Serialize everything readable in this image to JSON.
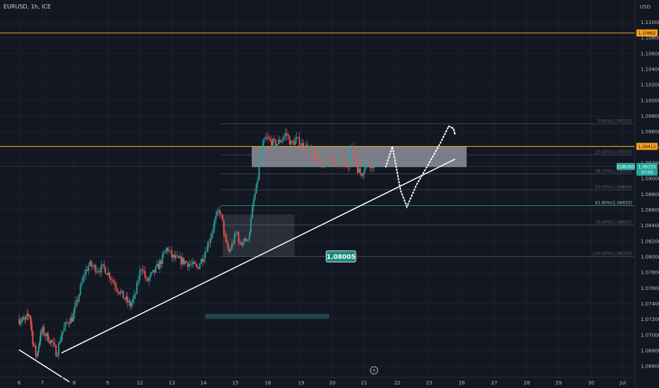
{
  "header": {
    "title": "EURUSD, 1h, ICE",
    "currency": "USD"
  },
  "colors": {
    "background": "#131722",
    "grid": "#1e222d",
    "up": "#26a69a",
    "down": "#ef5350",
    "level_orange": "#f7a21b",
    "trendline": "#ffffff",
    "fib_line": "#787b86",
    "fib_green": "#26a69a",
    "zone": "#d1d4dc",
    "last_price": "#26a69a"
  },
  "icons": [
    "lightning-icon"
  ],
  "chart_data": {
    "type": "candlestick",
    "symbol": "EURUSD",
    "timeframe": "1h",
    "exchange": "ICE",
    "ylim": [
      1.065,
      1.113
    ],
    "y_ticks": [
      "1.11000",
      "1.10800",
      "1.10600",
      "1.10400",
      "1.10200",
      "1.10000",
      "1.09800",
      "1.09600",
      "1.09400",
      "1.09200",
      "1.09000",
      "1.08800",
      "1.08600",
      "1.08400",
      "1.08200",
      "1.08000",
      "1.07800",
      "1.07600",
      "1.07400",
      "1.07200",
      "1.07000",
      "1.06800",
      "1.06600"
    ],
    "x_ticks": [
      {
        "label": "6",
        "t": 0
      },
      {
        "label": "7",
        "t": 1
      },
      {
        "label": "8",
        "t": 2
      },
      {
        "label": "9",
        "t": 3
      },
      {
        "label": "12",
        "t": 4
      },
      {
        "label": "13",
        "t": 5
      },
      {
        "label": "14",
        "t": 6
      },
      {
        "label": "15",
        "t": 7
      },
      {
        "label": "16",
        "t": 8
      },
      {
        "label": "19",
        "t": 9
      },
      {
        "label": "20",
        "t": 10
      },
      {
        "label": "21",
        "t": 11
      },
      {
        "label": "22",
        "t": 12
      },
      {
        "label": "23",
        "t": 13
      },
      {
        "label": "26",
        "t": 14
      },
      {
        "label": "27",
        "t": 15
      },
      {
        "label": "28",
        "t": 16
      },
      {
        "label": "29",
        "t": 17
      },
      {
        "label": "30",
        "t": 18
      },
      {
        "label": "Jul",
        "t": 19
      }
    ],
    "price_path": [
      [
        0.0,
        1.072
      ],
      [
        0.25,
        1.0718
      ],
      [
        0.45,
        1.0728
      ],
      [
        0.6,
        1.069
      ],
      [
        0.75,
        1.0672
      ],
      [
        0.9,
        1.0698
      ],
      [
        1.0,
        1.0706
      ],
      [
        1.1,
        1.07
      ],
      [
        1.3,
        1.069
      ],
      [
        1.45,
        1.0676
      ],
      [
        1.6,
        1.0702
      ],
      [
        1.8,
        1.0718
      ],
      [
        1.95,
        1.0722
      ],
      [
        2.1,
        1.0746
      ],
      [
        2.3,
        1.0778
      ],
      [
        2.45,
        1.079
      ],
      [
        2.7,
        1.0784
      ],
      [
        2.9,
        1.0786
      ],
      [
        3.1,
        1.0774
      ],
      [
        3.3,
        1.076
      ],
      [
        3.5,
        1.0748
      ],
      [
        3.7,
        1.0738
      ],
      [
        3.85,
        1.075
      ],
      [
        3.95,
        1.0772
      ],
      [
        4.05,
        1.079
      ],
      [
        4.2,
        1.0768
      ],
      [
        4.4,
        1.0778
      ],
      [
        4.6,
        1.079
      ],
      [
        4.75,
        1.0802
      ],
      [
        4.85,
        1.0812
      ],
      [
        5.0,
        1.08
      ],
      [
        5.2,
        1.0796
      ],
      [
        5.4,
        1.0794
      ],
      [
        5.6,
        1.079
      ],
      [
        5.8,
        1.0786
      ],
      [
        6.0,
        1.0802
      ],
      [
        6.2,
        1.0824
      ],
      [
        6.35,
        1.0846
      ],
      [
        6.5,
        1.086
      ],
      [
        6.6,
        1.0842
      ],
      [
        6.7,
        1.0816
      ],
      [
        6.8,
        1.0806
      ],
      [
        6.95,
        1.0822
      ],
      [
        7.05,
        1.0832
      ],
      [
        7.15,
        1.0812
      ],
      [
        7.25,
        1.0826
      ],
      [
        7.35,
        1.0818
      ],
      [
        7.45,
        1.0838
      ],
      [
        7.55,
        1.087
      ],
      [
        7.65,
        1.089
      ],
      [
        7.75,
        1.092
      ],
      [
        7.85,
        1.0944
      ],
      [
        7.95,
        1.0952
      ],
      [
        8.1,
        1.0946
      ],
      [
        8.25,
        1.0944
      ],
      [
        8.4,
        1.095
      ],
      [
        8.55,
        1.0958
      ],
      [
        8.7,
        1.0944
      ],
      [
        8.85,
        1.095
      ],
      [
        9.0,
        1.0944
      ],
      [
        9.15,
        1.094
      ],
      [
        9.3,
        1.0936
      ],
      [
        9.45,
        1.0926
      ],
      [
        9.6,
        1.0922
      ],
      [
        9.75,
        1.0924
      ],
      [
        9.9,
        1.0926
      ],
      [
        10.05,
        1.092
      ],
      [
        10.2,
        1.0924
      ],
      [
        10.35,
        1.0918
      ],
      [
        10.5,
        1.092
      ],
      [
        10.6,
        1.094
      ],
      [
        10.7,
        1.093
      ],
      [
        10.8,
        1.0912
      ],
      [
        10.9,
        1.0906
      ],
      [
        11.0,
        1.0915
      ],
      [
        11.2,
        1.092
      ],
      [
        11.35,
        1.0915
      ]
    ],
    "price_path_time_base": "x_ticks.t index units (trading sessions)",
    "fib_retracement": {
      "levels": [
        {
          "ratio_label": "0.00%",
          "price": 1.09702,
          "label": "0.00%(1.09702)"
        },
        {
          "ratio_label": "23.60%",
          "price": 1.09305,
          "label": "23.60%(1.09305)"
        },
        {
          "ratio_label": "38.20%",
          "price": 1.09059,
          "label": "38.20%(1.09059)"
        },
        {
          "ratio_label": "50.00%",
          "price": 1.08856,
          "label": "50.00%(1.08856)"
        },
        {
          "ratio_label": "61.80%",
          "price": 1.08655,
          "label": "61.80%(1.08655)"
        },
        {
          "ratio_label": "78.60%",
          "price": 1.08407,
          "label": "78.60%(1.08407)"
        },
        {
          "ratio_label": "100.00%",
          "price": 1.08005,
          "label": "100.00%(1.08005)"
        }
      ],
      "highlighted_ratio": "61.80%"
    },
    "horizontal_levels": [
      {
        "price": 1.10862,
        "label": "1.10862"
      },
      {
        "price": 1.09412,
        "label": "1.09412"
      }
    ],
    "last_price": {
      "symbol": "EURUSD",
      "price": "1.09155",
      "countdown": "37:05",
      "value": 1.09155
    },
    "callout": {
      "label": "1.08005",
      "price": 1.08005
    },
    "zones": [
      {
        "name": "supply-zone",
        "t_from": 7.5,
        "t_to": 14.15,
        "p_from": 1.09147,
        "p_to": 1.09412
      },
      {
        "name": "demand-zone",
        "t_from": 6.6,
        "t_to": 8.8,
        "p_from": 1.08005,
        "p_to": 1.0854
      },
      {
        "name": "volume-bar",
        "t_from": 6.05,
        "t_to": 9.9,
        "p_from": 1.0721,
        "p_to": 1.0727
      }
    ],
    "trendlines": [
      {
        "t1": 1.6,
        "p1": 1.0677,
        "t2": 13.8,
        "p2": 1.0925
      },
      {
        "t1": 0.0,
        "p1": 1.0681,
        "t2": 1.85,
        "p2": 1.064
      }
    ],
    "projection_path": [
      [
        11.65,
        1.0915
      ],
      [
        11.85,
        1.0941
      ],
      [
        12.1,
        1.0885
      ],
      [
        12.3,
        1.0864
      ],
      [
        12.6,
        1.0892
      ],
      [
        13.0,
        1.092
      ],
      [
        13.35,
        1.0946
      ],
      [
        13.6,
        1.0967
      ],
      [
        13.75,
        1.0964
      ],
      [
        13.8,
        1.0955
      ]
    ],
    "grid": true,
    "legend": "none"
  }
}
